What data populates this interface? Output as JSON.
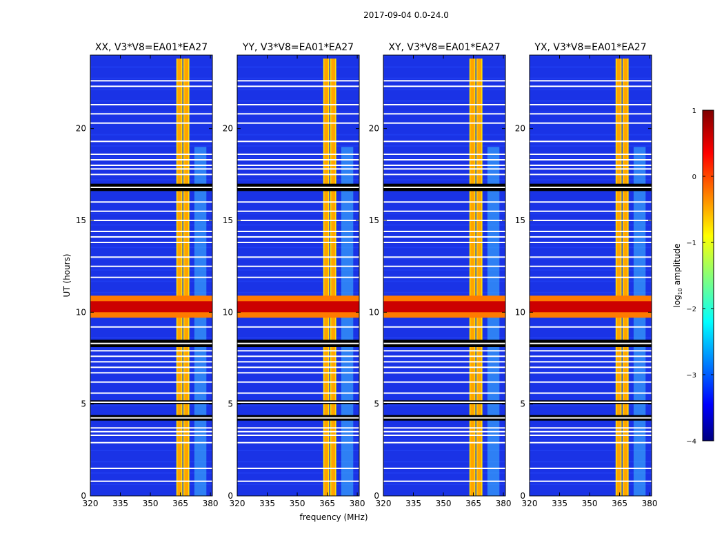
{
  "figure": {
    "suptitle": "2017-09-04 0.0-24.0"
  },
  "chart_data": {
    "type": "heatmap",
    "title": "2017-09-04 0.0-24.0",
    "xlabel": "frequency (MHz)",
    "ylabel": "UT (hours)",
    "xlim": [
      320,
      381
    ],
    "ylim": [
      0,
      24
    ],
    "x_ticks": [
      320,
      335,
      350,
      365,
      380
    ],
    "y_ticks": [
      0,
      5,
      10,
      15,
      20
    ],
    "panels": [
      {
        "title": "XX, V3*V8=EA01*EA27",
        "polarization": "XX"
      },
      {
        "title": "YY, V3*V8=EA01*EA27",
        "polarization": "YY"
      },
      {
        "title": "XY, V3*V8=EA01*EA27",
        "polarization": "XY"
      },
      {
        "title": "YX, V3*V8=EA01*EA27",
        "polarization": "YX"
      }
    ],
    "colorbar": {
      "label": "log10 amplitude",
      "label_base": "log",
      "label_sub": "10",
      "label_rest": " amplitude",
      "range": [
        -4,
        1
      ],
      "ticks": [
        1,
        0,
        -1,
        -2,
        -3,
        -4
      ],
      "tick_labels": [
        "1",
        "0",
        "−1",
        "−2",
        "−3",
        "−4"
      ],
      "colormap": "jet"
    },
    "features": {
      "rfi_frequency_range_mhz": [
        363,
        370
      ],
      "weak_rfi_frequency_range_mhz": [
        372,
        378
      ],
      "broadband_event_ut_hours": [
        9.7,
        10.9
      ],
      "flagged_gaps_ut_hours": [
        [
          8.1,
          8.5
        ],
        [
          4.1,
          4.4
        ],
        [
          5.0,
          5.2
        ],
        [
          16.6,
          17.0
        ]
      ]
    }
  }
}
